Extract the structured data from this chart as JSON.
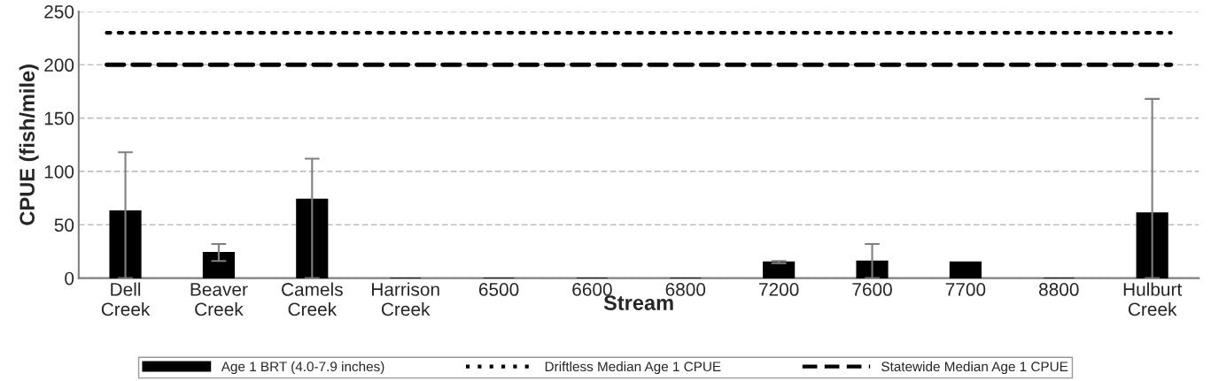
{
  "chart_data": {
    "type": "bar",
    "xlabel": "Stream",
    "ylabel": "CPUE (fish/mile)",
    "categories": [
      "Dell\nCreek",
      "Beaver\nCreek",
      "Camels\nCreek",
      "Harrison\nCreek",
      "6500",
      "6600",
      "6800",
      "7200",
      "7600",
      "7700",
      "8800",
      "Hulburt\nCreek"
    ],
    "series": [
      {
        "name": "Age 1 BRT (4.0-7.9 inches)",
        "color": "#000000",
        "values": [
          63,
          24,
          74,
          0,
          0,
          0,
          0,
          15,
          16,
          15,
          0,
          61
        ],
        "errors": [
          [
            0,
            118
          ],
          [
            16,
            32
          ],
          [
            0,
            112
          ],
          null,
          null,
          null,
          null,
          [
            14,
            16
          ],
          [
            0,
            32
          ],
          null,
          null,
          [
            0,
            168
          ]
        ]
      }
    ],
    "ref_lines": [
      {
        "axis": "y",
        "value": 230,
        "label": "Driftless Median Age 1 CPUE",
        "color": "#000000",
        "line_style": "dotted"
      },
      {
        "axis": "y",
        "value": 200,
        "label": "Statewide Median Age 1 CPUE",
        "color": "#000000",
        "line_style": "dashed"
      }
    ],
    "ylim": [
      0,
      250
    ],
    "yticks": [
      0,
      50,
      100,
      150,
      200,
      250
    ],
    "grid": "y",
    "legend": "bottom"
  }
}
